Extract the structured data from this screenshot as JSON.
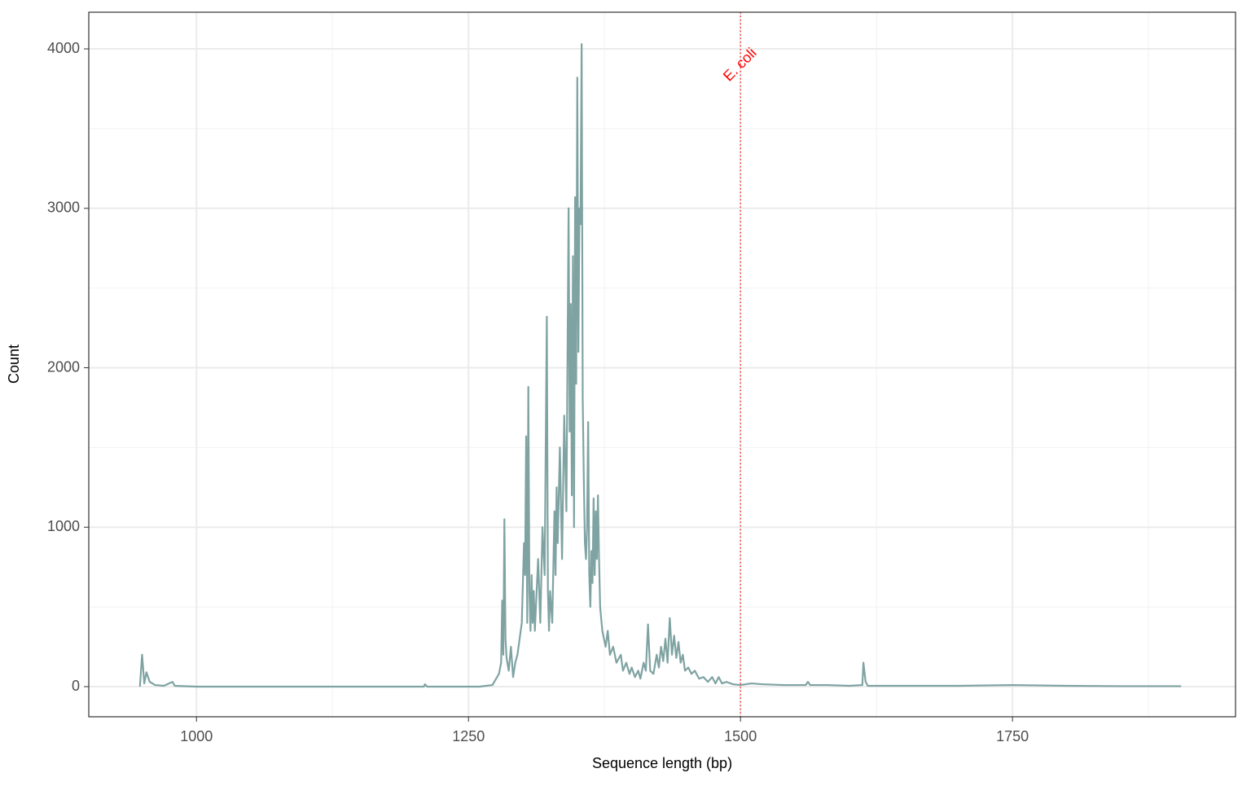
{
  "chart_data": {
    "type": "line",
    "xlabel": "Sequence length (bp)",
    "ylabel": "Count",
    "x": [
      948,
      950,
      952,
      954,
      957,
      962,
      970,
      978,
      980,
      1000,
      1100,
      1209,
      1210,
      1212,
      1260,
      1272,
      1278,
      1280,
      1281,
      1282,
      1283,
      1284,
      1285,
      1287,
      1289,
      1291,
      1293,
      1295,
      1297,
      1299,
      1301,
      1302,
      1303,
      1304,
      1305,
      1306,
      1307,
      1308,
      1309,
      1310,
      1311,
      1312,
      1314,
      1316,
      1318,
      1320,
      1322,
      1323,
      1324,
      1325,
      1327,
      1329,
      1330,
      1331,
      1332,
      1334,
      1336,
      1338,
      1340,
      1342,
      1343,
      1344,
      1345,
      1346,
      1347,
      1348,
      1349,
      1350,
      1351,
      1352,
      1353,
      1354,
      1355,
      1356,
      1357,
      1358,
      1359,
      1360,
      1361,
      1362,
      1363,
      1364,
      1365,
      1366,
      1367,
      1368,
      1369,
      1370,
      1371,
      1373,
      1376,
      1378,
      1380,
      1383,
      1386,
      1390,
      1392,
      1395,
      1398,
      1400,
      1403,
      1406,
      1408,
      1411,
      1413,
      1415,
      1417,
      1420,
      1423,
      1425,
      1427,
      1429,
      1431,
      1433,
      1435,
      1437,
      1439,
      1441,
      1443,
      1445,
      1447,
      1449,
      1452,
      1455,
      1458,
      1462,
      1466,
      1470,
      1474,
      1477,
      1480,
      1483,
      1487,
      1493,
      1500,
      1510,
      1520,
      1540,
      1560,
      1562,
      1564,
      1580,
      1600,
      1612,
      1613,
      1615,
      1617,
      1640,
      1700,
      1750,
      1800,
      1850,
      1905
    ],
    "values": [
      0,
      200,
      20,
      90,
      30,
      10,
      5,
      30,
      5,
      0,
      0,
      0,
      15,
      0,
      0,
      10,
      80,
      150,
      540,
      200,
      1050,
      300,
      180,
      100,
      250,
      60,
      150,
      200,
      300,
      400,
      900,
      700,
      1570,
      400,
      1880,
      600,
      350,
      700,
      400,
      600,
      350,
      500,
      800,
      400,
      1000,
      700,
      2320,
      600,
      350,
      600,
      400,
      1100,
      700,
      1250,
      900,
      1500,
      800,
      1700,
      1100,
      3000,
      1600,
      2400,
      1200,
      2700,
      1000,
      3070,
      1900,
      3820,
      2100,
      3000,
      2900,
      4030,
      1800,
      1300,
      900,
      800,
      1000,
      1660,
      700,
      500,
      850,
      650,
      1180,
      700,
      1100,
      800,
      1200,
      800,
      500,
      350,
      250,
      350,
      200,
      250,
      150,
      200,
      100,
      150,
      80,
      120,
      60,
      100,
      50,
      150,
      100,
      390,
      100,
      80,
      200,
      120,
      250,
      160,
      300,
      150,
      430,
      200,
      320,
      180,
      280,
      150,
      200,
      100,
      120,
      80,
      100,
      50,
      60,
      30,
      60,
      20,
      60,
      20,
      30,
      15,
      10,
      20,
      15,
      10,
      10,
      30,
      10,
      10,
      5,
      10,
      150,
      30,
      5,
      5,
      5,
      10,
      5,
      3,
      3
    ],
    "color": "#7fa3a2",
    "xlim": [
      901,
      1955
    ],
    "ylim": [
      -189,
      4230
    ],
    "xticks": [
      1000,
      1250,
      1500,
      1750
    ],
    "yticks": [
      0,
      1000,
      2000,
      3000,
      4000
    ],
    "x_minor_ticks": [
      1125,
      1375,
      1625,
      1875
    ],
    "y_minor_ticks": [
      500,
      1500,
      2500,
      3500
    ],
    "grid": true,
    "annotations": [
      {
        "x": 1500,
        "label": "E. coli",
        "color": "#ff0000"
      }
    ]
  }
}
